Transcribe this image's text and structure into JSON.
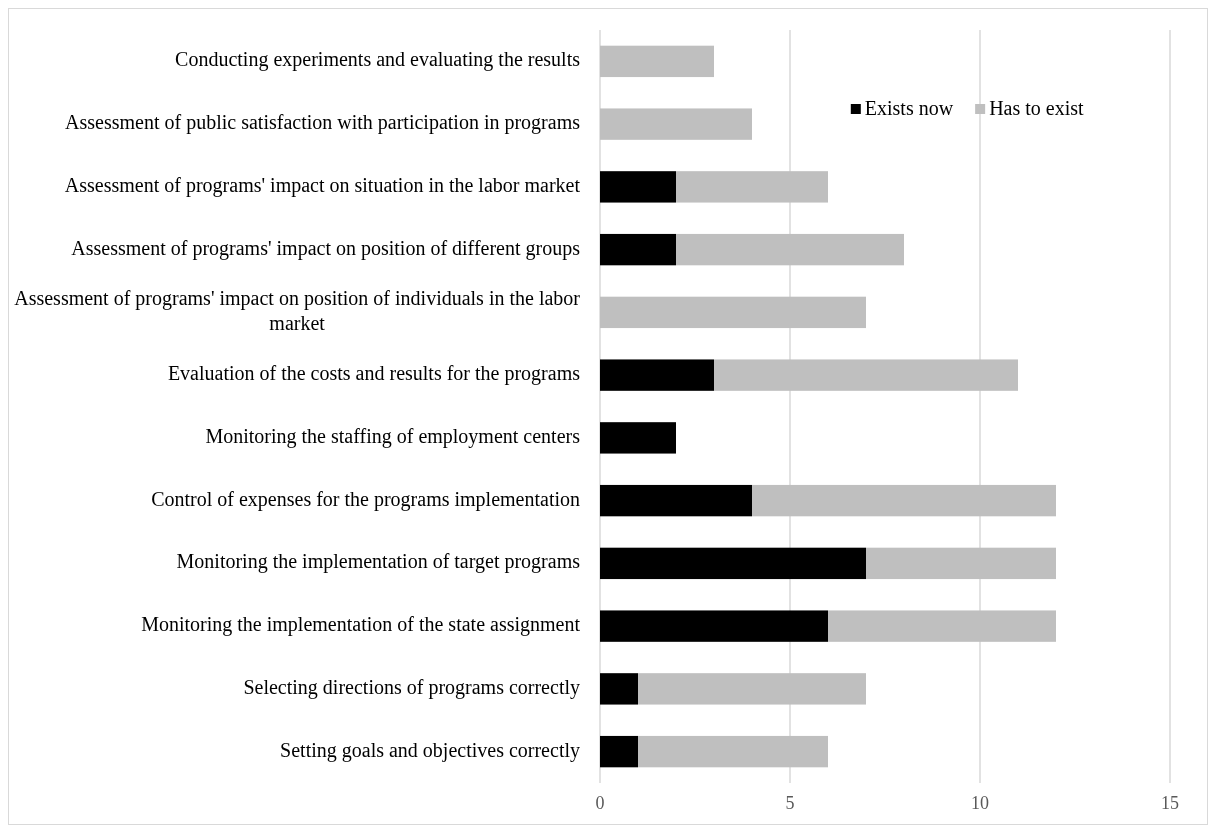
{
  "chart_data": {
    "type": "bar",
    "orientation": "horizontal",
    "stacked": true,
    "categories": [
      "Conducting experiments and evaluating the results",
      "Assessment of public satisfaction with participation in programs",
      "Assessment of programs' impact on situation in the labor market",
      "Assessment of programs' impact on position of different groups",
      "Assessment of programs' impact on position of individuals in the labor market",
      "Evaluation of the costs and results for the programs",
      "Monitoring the staffing of employment centers",
      "Control of expenses for the programs implementation",
      "Monitoring the implementation of target programs",
      "Monitoring the implementation of the state assignment",
      "Selecting directions of programs correctly",
      "Setting goals and objectives correctly"
    ],
    "series": [
      {
        "name": "Exists now",
        "color": "#000000",
        "values": [
          0,
          0,
          2,
          2,
          0,
          3,
          2,
          4,
          7,
          6,
          1,
          1
        ]
      },
      {
        "name": "Has to exist",
        "color": "#bfbfbf",
        "values": [
          3,
          4,
          4,
          6,
          7,
          8,
          0,
          8,
          5,
          6,
          6,
          5
        ]
      }
    ],
    "xlim": [
      0,
      15
    ],
    "xticks": [
      0,
      5,
      10,
      15
    ],
    "grid": "x",
    "legend": "top right"
  }
}
